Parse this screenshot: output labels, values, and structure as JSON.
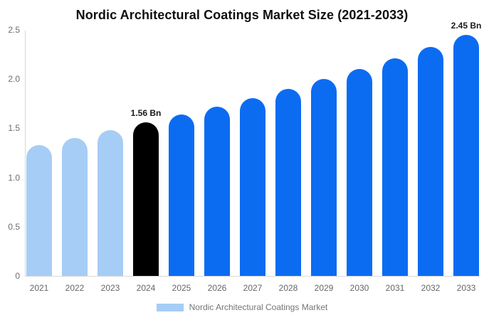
{
  "title": "Nordic Architectural Coatings Market Size (2021-2033)",
  "chart_data": {
    "type": "bar",
    "title": "Nordic Architectural Coatings Market Size (2021-2033)",
    "categories": [
      "2021",
      "2022",
      "2023",
      "2024",
      "2025",
      "2026",
      "2027",
      "2028",
      "2029",
      "2030",
      "2031",
      "2032",
      "2033"
    ],
    "values": [
      1.33,
      1.4,
      1.48,
      1.56,
      1.64,
      1.72,
      1.81,
      1.9,
      2.0,
      2.1,
      2.21,
      2.33,
      2.45
    ],
    "unit": "Bn",
    "bar_colors": [
      "#A6CDF5",
      "#A6CDF5",
      "#A6CDF5",
      "#000000",
      "#0B6CF2",
      "#0B6CF2",
      "#0B6CF2",
      "#0B6CF2",
      "#0B6CF2",
      "#0B6CF2",
      "#0B6CF2",
      "#0B6CF2",
      "#0B6CF2"
    ],
    "annotations": [
      {
        "category": "2024",
        "label": "1.56 Bn"
      },
      {
        "category": "2033",
        "label": "2.45 Bn"
      }
    ],
    "xlabel": "",
    "ylabel": "",
    "ylim": [
      0,
      2.5
    ],
    "yticks": [
      {
        "value": 0,
        "label": "0"
      },
      {
        "value": 0.5,
        "label": "0.5"
      },
      {
        "value": 1.0,
        "label": "1.0"
      },
      {
        "value": 1.5,
        "label": "1.5"
      },
      {
        "value": 2.0,
        "label": "2.0"
      },
      {
        "value": 2.5,
        "label": "2.5"
      }
    ],
    "grid": false,
    "legend": {
      "label": "Nordic Architectural Coatings Market",
      "swatch_color": "#A6CDF5",
      "position": "bottom"
    }
  },
  "colors": {
    "historical_bar": "#A6CDF5",
    "highlight_bar": "#000000",
    "forecast_bar": "#0B6CF2",
    "axis_line": "#d9d9d9",
    "tick_text": "#6e6e6e",
    "title_text": "#0f0f0f"
  }
}
